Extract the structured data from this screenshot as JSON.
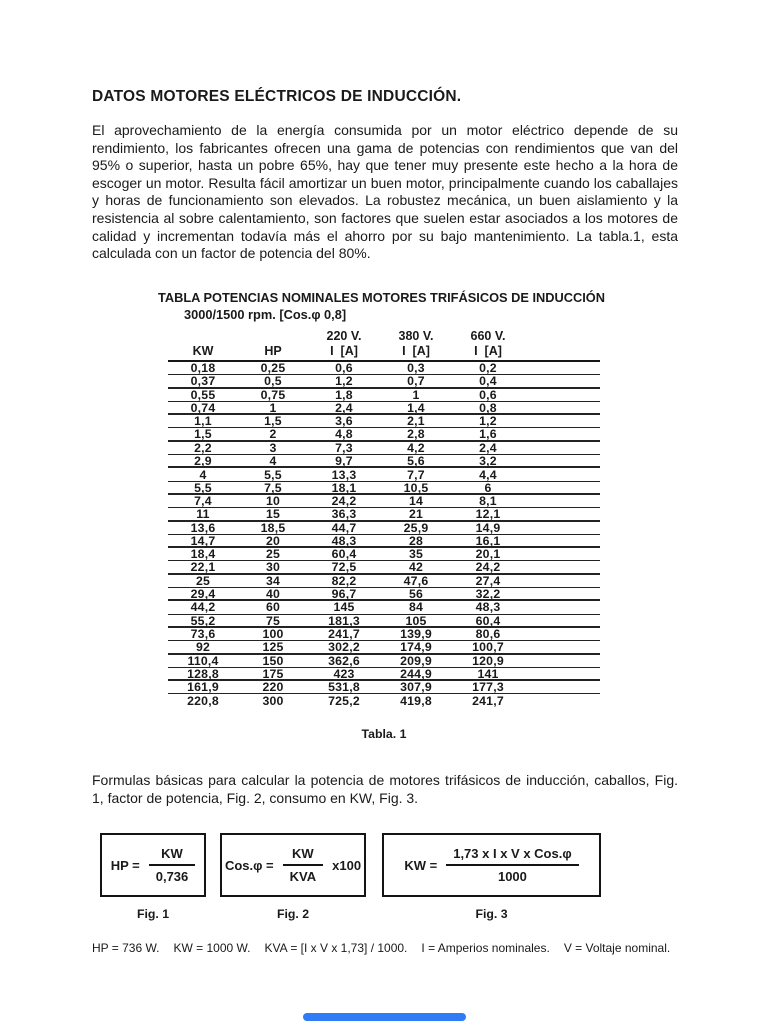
{
  "page": {
    "title": "DATOS MOTORES ELÉCTRICOS DE INDUCCIÓN.",
    "intro": "El aprovechamiento de la energía consumida por un motor eléctrico depende de su rendimiento, los fabricantes ofrecen una gama de potencias con rendimientos que van del 95% o superior, hasta un pobre 65%, hay que tener muy presente este hecho a la hora de escoger un motor. Resulta fácil amortizar un buen motor, principalmente cuando los caballajes y horas de funcionamiento son elevados. La robustez mecánica, un buen aislamiento y la resistencia al sobre calentamiento, son factores que suelen estar asociados a los motores de calidad y incrementan todavía más el ahorro por su bajo mantenimiento. La tabla.1, esta calculada con un factor de potencia del 80%."
  },
  "table": {
    "title_line1": "TABLA POTENCIAS NOMINALES MOTORES TRIFÁSICOS DE INDUCCIÓN",
    "title_line2": "3000/1500 rpm.  [Cos.φ 0,8]",
    "voltage_headers": [
      "",
      "",
      "220 V.",
      "380 V.",
      "660 V."
    ],
    "col_headers": [
      "KW",
      "HP",
      "I  [A]",
      "I  [A]",
      "I  [A]"
    ],
    "rows": [
      [
        "0,18",
        "0,25",
        "0,6",
        "0,3",
        "0,2"
      ],
      [
        "0,37",
        "0,5",
        "1,2",
        "0,7",
        "0,4"
      ],
      [
        "0,55",
        "0,75",
        "1,8",
        "1",
        "0,6"
      ],
      [
        "0,74",
        "1",
        "2,4",
        "1,4",
        "0,8"
      ],
      [
        "1,1",
        "1,5",
        "3,6",
        "2,1",
        "1,2"
      ],
      [
        "1,5",
        "2",
        "4,8",
        "2,8",
        "1,6"
      ],
      [
        "2,2",
        "3",
        "7,3",
        "4,2",
        "2,4"
      ],
      [
        "2,9",
        "4",
        "9,7",
        "5,6",
        "3,2"
      ],
      [
        "4",
        "5,5",
        "13,3",
        "7,7",
        "4,4"
      ],
      [
        "5,5",
        "7,5",
        "18,1",
        "10,5",
        "6"
      ],
      [
        "7,4",
        "10",
        "24,2",
        "14",
        "8,1"
      ],
      [
        "11",
        "15",
        "36,3",
        "21",
        "12,1"
      ],
      [
        "13,6",
        "18,5",
        "44,7",
        "25,9",
        "14,9"
      ],
      [
        "14,7",
        "20",
        "48,3",
        "28",
        "16,1"
      ],
      [
        "18,4",
        "25",
        "60,4",
        "35",
        "20,1"
      ],
      [
        "22,1",
        "30",
        "72,5",
        "42",
        "24,2"
      ],
      [
        "25",
        "34",
        "82,2",
        "47,6",
        "27,4"
      ],
      [
        "29,4",
        "40",
        "96,7",
        "56",
        "32,2"
      ],
      [
        "44,2",
        "60",
        "145",
        "84",
        "48,3"
      ],
      [
        "55,2",
        "75",
        "181,3",
        "105",
        "60,4"
      ],
      [
        "73,6",
        "100",
        "241,7",
        "139,9",
        "80,6"
      ],
      [
        "92",
        "125",
        "302,2",
        "174,9",
        "100,7"
      ],
      [
        "110,4",
        "150",
        "362,6",
        "209,9",
        "120,9"
      ],
      [
        "128,8",
        "175",
        "423",
        "244,9",
        "141"
      ],
      [
        "161,9",
        "220",
        "531,8",
        "307,9",
        "177,3"
      ],
      [
        "220,8",
        "300",
        "725,2",
        "419,8",
        "241,7"
      ]
    ],
    "caption": "Tabla. 1"
  },
  "formulas_intro": "Formulas básicas para calcular la potencia de motores trifásicos de inducción, caballos, Fig. 1, factor de potencia, Fig. 2, consumo en KW, Fig. 3.",
  "figures": [
    {
      "lhs": "HP =",
      "numerator": "KW",
      "denominator": "0,736",
      "caption": "Fig. 1"
    },
    {
      "lhs": "Cos.φ =",
      "numerator": "KW",
      "denominator": "KVA",
      "suffix": "x100",
      "caption": "Fig. 2"
    },
    {
      "lhs": "KW =",
      "numerator": "1,73 x I x V x Cos.φ",
      "denominator": "1000",
      "caption": "Fig. 3"
    }
  ],
  "footnote": [
    "HP = 736 W.",
    "KW = 1000 W.",
    "KVA = [I x V x 1,73] / 1000.",
    "I = Amperios nominales.",
    "V = Voltaje nominal."
  ]
}
